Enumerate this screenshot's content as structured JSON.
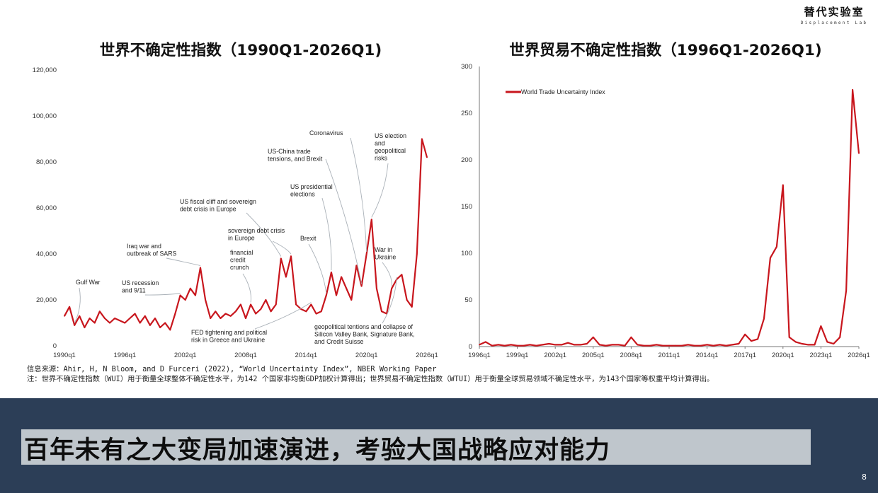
{
  "brand": {
    "name_cn": "替代实验室",
    "name_en": "Displacement Lab"
  },
  "chart_data": [
    {
      "type": "line",
      "title": "世界不确定性指数（1990Q1-2026Q1)",
      "ylim": [
        0,
        120000
      ],
      "yticks": [
        "0",
        "20,000",
        "40,000",
        "60,000",
        "80,000",
        "100,000",
        "120,000"
      ],
      "xticks": [
        "1990q1",
        "1996q1",
        "2002q1",
        "2008q1",
        "2014q1",
        "2020q1",
        "2026q1"
      ],
      "color": "#c8161d",
      "x": [
        "1990q1",
        "1990q3",
        "1991q1",
        "1991q3",
        "1992q1",
        "1992q3",
        "1993q1",
        "1993q3",
        "1994q1",
        "1994q3",
        "1995q1",
        "1995q3",
        "1996q1",
        "1996q3",
        "1997q1",
        "1997q3",
        "1998q1",
        "1998q3",
        "1999q1",
        "1999q3",
        "2000q1",
        "2000q3",
        "2001q1",
        "2001q3",
        "2002q1",
        "2002q3",
        "2003q1",
        "2003q3",
        "2004q1",
        "2004q3",
        "2005q1",
        "2005q3",
        "2006q1",
        "2006q3",
        "2007q1",
        "2007q3",
        "2008q1",
        "2008q3",
        "2009q1",
        "2009q3",
        "2010q1",
        "2010q3",
        "2011q1",
        "2011q3",
        "2012q1",
        "2012q3",
        "2013q1",
        "2013q3",
        "2014q1",
        "2014q3",
        "2015q1",
        "2015q3",
        "2016q1",
        "2016q3",
        "2017q1",
        "2017q3",
        "2018q1",
        "2018q3",
        "2019q1",
        "2019q3",
        "2020q1",
        "2020q3",
        "2021q1",
        "2021q3",
        "2022q1",
        "2022q3",
        "2023q1",
        "2023q3",
        "2024q1",
        "2024q3",
        "2025q1",
        "2025q3",
        "2026q1"
      ],
      "values": [
        13000,
        17000,
        9000,
        13000,
        8000,
        12000,
        10000,
        15000,
        12000,
        10000,
        12000,
        11000,
        10000,
        12000,
        14000,
        10000,
        13000,
        9000,
        12000,
        8000,
        10000,
        7000,
        14000,
        22000,
        20000,
        25000,
        22000,
        34000,
        20000,
        12000,
        15000,
        12000,
        14000,
        13000,
        15000,
        18000,
        12000,
        18000,
        14000,
        16000,
        20000,
        15000,
        18000,
        38000,
        30000,
        39000,
        18000,
        16000,
        15000,
        18000,
        14000,
        15000,
        22000,
        32000,
        22000,
        30000,
        25000,
        20000,
        35000,
        26000,
        40000,
        55000,
        25000,
        15000,
        14000,
        25000,
        29000,
        31000,
        20000,
        17000,
        40000,
        90000,
        82000
      ],
      "annotations": [
        "Gulf War",
        "US recession and 9/11",
        "Iraq war and outbreak of SARS",
        "US fiscal cliff and sovereign debt crisis in Europe",
        "sovereign debt crisis in Europe",
        "financial credit crunch",
        "FED tightening and political risk in Greece and Ukraine",
        "US-China trade tensions, and Brexit",
        "US presidential elections",
        "Brexit",
        "Coronavirus",
        "US election and geopolitical risks",
        "War in Ukraine",
        "geopolitical tentions and collapse of Silicon Valley Bank, Signature Bank, and Credit Suisse"
      ]
    },
    {
      "type": "line",
      "title": "世界贸易不确定性指数（1996Q1-2026Q1)",
      "ylim": [
        0,
        300
      ],
      "yticks": [
        "0",
        "50",
        "100",
        "150",
        "200",
        "250",
        "300"
      ],
      "xticks": [
        "1996q1",
        "1999q1",
        "2002q1",
        "2005q1",
        "2008q1",
        "2011q1",
        "2014q1",
        "2017q1",
        "2020q1",
        "2023q1",
        "2026q1"
      ],
      "color": "#c8161d",
      "legend": "World Trade Uncertainty Index",
      "legend_position": "top-left",
      "x": [
        "1996q1",
        "1996q3",
        "1997q1",
        "1997q3",
        "1998q1",
        "1998q3",
        "1999q1",
        "1999q3",
        "2000q1",
        "2000q3",
        "2001q1",
        "2001q3",
        "2002q1",
        "2002q3",
        "2003q1",
        "2003q3",
        "2004q1",
        "2004q3",
        "2005q1",
        "2005q3",
        "2006q1",
        "2006q3",
        "2007q1",
        "2007q3",
        "2008q1",
        "2008q3",
        "2009q1",
        "2009q3",
        "2010q1",
        "2010q3",
        "2011q1",
        "2011q3",
        "2012q1",
        "2012q3",
        "2013q1",
        "2013q3",
        "2014q1",
        "2014q3",
        "2015q1",
        "2015q3",
        "2016q1",
        "2016q3",
        "2017q1",
        "2017q3",
        "2018q1",
        "2018q3",
        "2019q1",
        "2019q3",
        "2020q1",
        "2020q3",
        "2021q1",
        "2021q3",
        "2022q1",
        "2022q3",
        "2023q1",
        "2023q3",
        "2024q1",
        "2024q3",
        "2025q1",
        "2025q3",
        "2026q1"
      ],
      "values": [
        2,
        5,
        1,
        2,
        1,
        2,
        1,
        1,
        2,
        1,
        2,
        3,
        2,
        2,
        4,
        2,
        2,
        3,
        10,
        2,
        1,
        2,
        2,
        1,
        10,
        2,
        1,
        1,
        2,
        1,
        1,
        1,
        1,
        2,
        1,
        1,
        2,
        1,
        2,
        1,
        2,
        3,
        13,
        6,
        8,
        30,
        95,
        107,
        173,
        10,
        5,
        3,
        2,
        2,
        22,
        5,
        3,
        10,
        60,
        275,
        207
      ]
    }
  ],
  "notes": {
    "source": "信息来源：Ahir, H, N Bloom, and D Furceri (2022), “World Uncertainty Index”, NBER Working Paper",
    "note": "注：世界不确定性指数（WUI）用于衡量全球整体不确定性水平，为142 个国家非均衡GDP加权计算得出；世界贸易不确定性指数（WTUI）用于衡量全球贸易领域不确定性水平，为143个国家等权重平均计算得出。"
  },
  "banner": {
    "text": "百年未有之大变局加速演进，考验大国战略应对能力"
  },
  "page_number": "8"
}
